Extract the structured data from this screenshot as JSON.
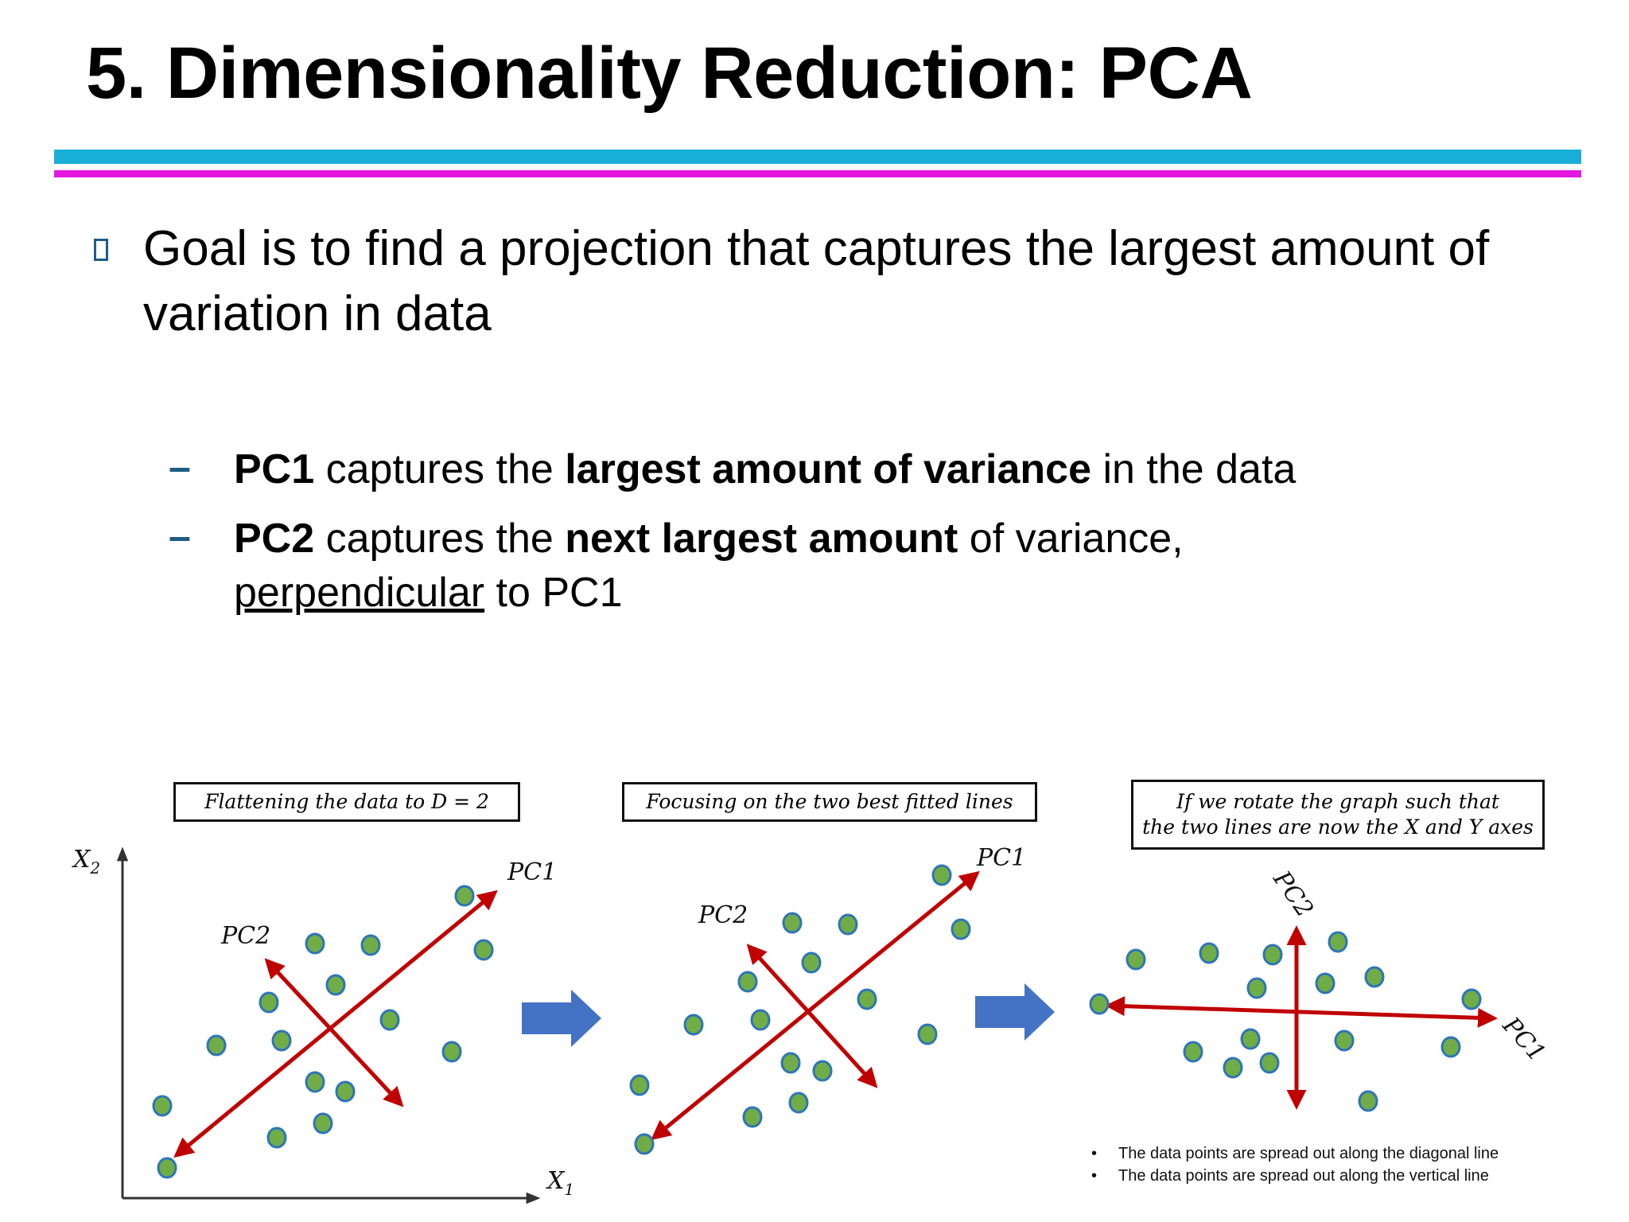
{
  "slide": {
    "title": "5. Dimensionality Reduction: PCA",
    "goal": "Goal is to find a projection that captures the largest amount of variation in data",
    "sub1": {
      "b1": "PC1",
      "t1": " captures the ",
      "b2": "largest amount of variance",
      "t2": " in the data"
    },
    "sub2": {
      "b1": "PC2",
      "t1": " captures the ",
      "b2": "next largest amount",
      "t2": " of variance, ",
      "u": "perpendicular",
      "t3": " to PC1"
    }
  },
  "figure": {
    "captions": [
      "Flattening the data to D = 2",
      "Focusing on the two best fitted lines",
      "If we rotate the graph such that",
      "the two lines are now the X and Y axes"
    ],
    "axis_x": "X",
    "axis_x_sub": "1",
    "axis_y": "X",
    "axis_y_sub": "2",
    "pc1": "PC1",
    "pc2": "PC2",
    "notes": [
      "The data points are spread out along the diagonal line",
      "The data points are spread out along the vertical line"
    ],
    "colors": {
      "point_fill": "#70ad47",
      "point_stroke": "#2e75b6",
      "arrow": "#c00000",
      "flow_arrow": "#4472c4"
    }
  }
}
